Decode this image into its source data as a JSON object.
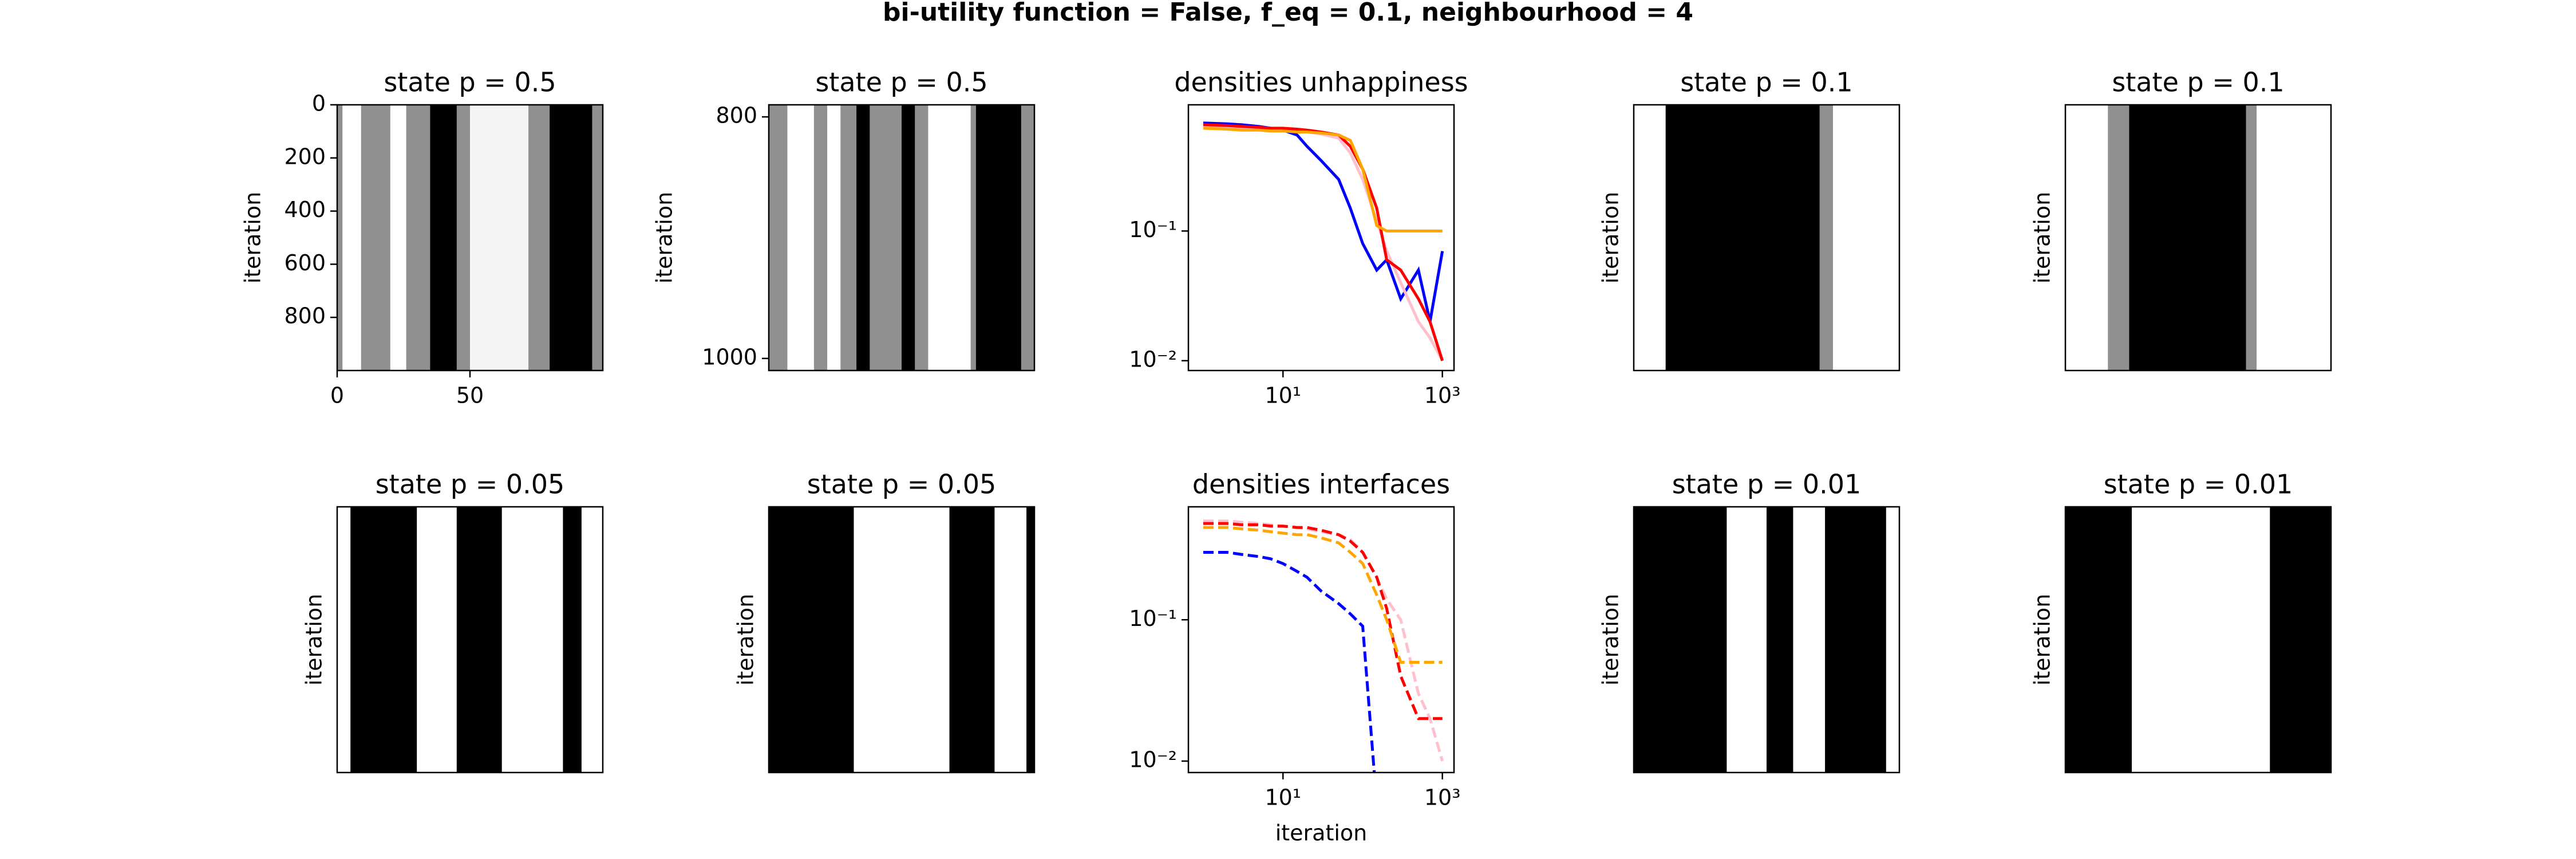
{
  "title": "bi-utility function = False, f_eq = 0.1, neighbourhood = 4",
  "chart_data": [
    {
      "type": "heatmap",
      "title": "state p = 0.5",
      "ylabel": "iteration",
      "xlim": [
        0,
        100
      ],
      "xticks": [
        0,
        50
      ],
      "ylim": [
        1000,
        0
      ],
      "yticks": [
        0,
        200,
        400,
        600,
        800
      ]
    },
    {
      "type": "heatmap",
      "title": "state p = 0.5",
      "ylabel": "iteration",
      "ylim": [
        1010,
        790
      ],
      "yticks": [
        800,
        1000
      ]
    },
    {
      "type": "line",
      "title": "densities unhappiness",
      "xscale": "log",
      "yscale": "log",
      "xlim": [
        0.65,
        1400
      ],
      "ylim": [
        0.0084,
        0.94
      ],
      "xticks": [
        {
          "value": 10,
          "label": "10¹"
        },
        {
          "value": 1000,
          "label": "10³"
        }
      ],
      "yticks": [
        {
          "value": 0.1,
          "label": "10⁻¹"
        },
        {
          "value": 0.01,
          "label": "10⁻²"
        }
      ],
      "x": [
        1,
        2,
        3,
        5,
        7,
        10,
        15,
        20,
        30,
        50,
        70,
        100,
        150,
        200,
        300,
        500,
        700,
        1000
      ],
      "series": [
        {
          "color": "#0000ff",
          "linestyle": "solid",
          "values": [
            0.68,
            0.67,
            0.66,
            0.64,
            0.62,
            0.6,
            0.55,
            0.45,
            0.35,
            0.25,
            0.15,
            0.08,
            0.05,
            0.06,
            0.03,
            0.05,
            0.02,
            0.07
          ]
        },
        {
          "color": "#ffc0cb",
          "linestyle": "solid",
          "values": [
            0.64,
            0.63,
            0.62,
            0.61,
            0.6,
            0.6,
            0.59,
            0.58,
            0.56,
            0.52,
            0.4,
            0.25,
            0.12,
            0.07,
            0.04,
            0.02,
            0.015,
            0.01
          ]
        },
        {
          "color": "#ff0000",
          "linestyle": "solid",
          "values": [
            0.66,
            0.65,
            0.64,
            0.63,
            0.62,
            0.62,
            0.61,
            0.6,
            0.58,
            0.55,
            0.45,
            0.3,
            0.15,
            0.06,
            0.05,
            0.03,
            0.02,
            0.01
          ]
        },
        {
          "color": "#ffa500",
          "linestyle": "solid",
          "values": [
            0.62,
            0.61,
            0.6,
            0.6,
            0.59,
            0.59,
            0.58,
            0.58,
            0.57,
            0.55,
            0.5,
            0.3,
            0.11,
            0.1,
            0.1,
            0.1,
            0.1,
            0.1
          ]
        }
      ]
    },
    {
      "type": "heatmap",
      "title": "state p = 0.1",
      "ylabel": "iteration"
    },
    {
      "type": "heatmap",
      "title": "state p = 0.1",
      "ylabel": "iteration"
    },
    {
      "type": "heatmap",
      "title": "state p = 0.05",
      "ylabel": "iteration"
    },
    {
      "type": "heatmap",
      "title": "state p = 0.05",
      "ylabel": "iteration"
    },
    {
      "type": "line",
      "title": "densities interfaces",
      "xlabel": "iteration",
      "xscale": "log",
      "yscale": "log",
      "xlim": [
        0.65,
        1400
      ],
      "ylim": [
        0.0083,
        0.63
      ],
      "xticks": [
        {
          "value": 10,
          "label": "10¹"
        },
        {
          "value": 1000,
          "label": "10³"
        }
      ],
      "yticks": [
        {
          "value": 0.1,
          "label": "10⁻¹"
        },
        {
          "value": 0.01,
          "label": "10⁻²"
        }
      ],
      "x": [
        1,
        2,
        3,
        5,
        7,
        10,
        15,
        20,
        30,
        50,
        70,
        100,
        150,
        200,
        300,
        500,
        700,
        1000
      ],
      "series": [
        {
          "color": "#0000ff",
          "linestyle": "dashed",
          "values": [
            0.3,
            0.3,
            0.29,
            0.28,
            0.27,
            0.25,
            0.22,
            0.2,
            0.16,
            0.13,
            0.11,
            0.09,
            0.005,
            null,
            null,
            null,
            null,
            null
          ]
        },
        {
          "color": "#ffc0cb",
          "linestyle": "dashed",
          "values": [
            0.5,
            0.5,
            0.49,
            0.48,
            0.47,
            0.46,
            0.45,
            0.44,
            0.42,
            0.4,
            0.37,
            0.3,
            0.2,
            0.14,
            0.1,
            0.03,
            0.02,
            0.01
          ]
        },
        {
          "color": "#ff0000",
          "linestyle": "dashed",
          "values": [
            0.48,
            0.48,
            0.47,
            0.47,
            0.46,
            0.46,
            0.45,
            0.45,
            0.43,
            0.4,
            0.36,
            0.3,
            0.2,
            0.12,
            0.04,
            0.02,
            0.02,
            0.02
          ]
        },
        {
          "color": "#ffa500",
          "linestyle": "dashed",
          "values": [
            0.45,
            0.45,
            0.44,
            0.43,
            0.42,
            0.41,
            0.4,
            0.4,
            0.38,
            0.35,
            0.3,
            0.25,
            0.15,
            0.1,
            0.05,
            0.05,
            0.05,
            0.05
          ]
        }
      ]
    },
    {
      "type": "heatmap",
      "title": "state p = 0.01",
      "ylabel": "iteration"
    },
    {
      "type": "heatmap",
      "title": "state p = 0.01",
      "ylabel": "iteration"
    }
  ]
}
